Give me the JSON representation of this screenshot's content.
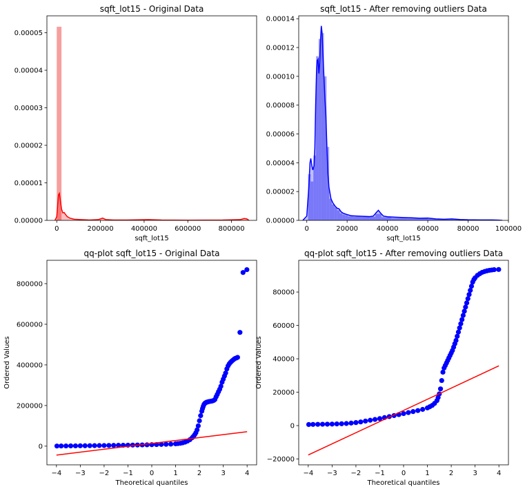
{
  "chart_data": [
    {
      "type": "histogram",
      "title": "sqft_lot15 - Original Data",
      "xlabel": "sqft_lot15",
      "ylabel": "",
      "xlim": [
        -45000,
        915000
      ],
      "ylim": [
        0,
        5.45e-05
      ],
      "xticks": [
        0,
        200000,
        400000,
        600000,
        800000
      ],
      "yticks": [
        0,
        1e-05,
        2e-05,
        3e-05,
        4e-05,
        5e-05
      ],
      "ytick_labels": [
        "0.00000",
        "0.00001",
        "0.00002",
        "0.00003",
        "0.00004",
        "0.00005"
      ],
      "color": "#ff0000",
      "bar_color": "#f59a9a",
      "bins": [
        {
          "x0": 0,
          "x1": 21750,
          "density": 5.16e-05
        }
      ],
      "kde": [
        [
          -8000,
          0
        ],
        [
          0,
          1e-06
        ],
        [
          4000,
          4e-06
        ],
        [
          8000,
          6.8e-06
        ],
        [
          12000,
          7.2e-06
        ],
        [
          16000,
          5.5e-06
        ],
        [
          22000,
          3e-06
        ],
        [
          28000,
          2e-06
        ],
        [
          34000,
          2.1e-06
        ],
        [
          40000,
          1.6e-06
        ],
        [
          48000,
          1e-06
        ],
        [
          60000,
          6e-07
        ],
        [
          80000,
          3e-07
        ],
        [
          110000,
          2e-07
        ],
        [
          150000,
          1e-07
        ],
        [
          190000,
          2e-07
        ],
        [
          210000,
          6e-07
        ],
        [
          225000,
          2e-07
        ],
        [
          260000,
          1e-07
        ],
        [
          320000,
          1e-07
        ],
        [
          420000,
          2e-07
        ],
        [
          480000,
          8e-08
        ],
        [
          600000,
          5e-08
        ],
        [
          760000,
          8e-08
        ],
        [
          840000,
          2e-07
        ],
        [
          858000,
          5e-07
        ],
        [
          870000,
          4e-07
        ],
        [
          880000,
          0.0
        ]
      ]
    },
    {
      "type": "histogram",
      "title": "sqft_lot15 - After removing outliers Data",
      "xlabel": "sqft_lot15",
      "ylabel": "",
      "xlim": [
        -4000,
        100000
      ],
      "ylim": [
        0,
        0.000142
      ],
      "xticks": [
        0,
        20000,
        40000,
        60000,
        80000,
        100000
      ],
      "yticks": [
        0,
        2e-05,
        4e-05,
        6e-05,
        8e-05,
        0.0001,
        0.00012,
        0.00014
      ],
      "ytick_labels": [
        "0.00000",
        "0.00002",
        "0.00004",
        "0.00006",
        "0.00008",
        "0.00010",
        "0.00012",
        "0.00014"
      ],
      "color": "#0000ff",
      "bar_color": "#9c9cf5",
      "bins": [
        {
          "x0": 651,
          "x1": 1959,
          "density": 3.2e-05
        },
        {
          "x0": 1959,
          "x1": 3267,
          "density": 2.7e-05
        },
        {
          "x0": 3267,
          "x1": 4575,
          "density": 4.5e-05
        },
        {
          "x0": 4575,
          "x1": 5883,
          "density": 0.000114
        },
        {
          "x0": 5883,
          "x1": 7191,
          "density": 0.000126
        },
        {
          "x0": 7191,
          "x1": 8499,
          "density": 0.00013
        },
        {
          "x0": 8499,
          "x1": 9807,
          "density": 0.0001
        },
        {
          "x0": 9807,
          "x1": 11115,
          "density": 5.1e-05
        },
        {
          "x0": 11115,
          "x1": 12423,
          "density": 1.5e-05
        },
        {
          "x0": 12423,
          "x1": 13731,
          "density": 1.1e-05
        },
        {
          "x0": 13731,
          "x1": 15039,
          "density": 9e-06
        },
        {
          "x0": 15039,
          "x1": 16347,
          "density": 7e-06
        },
        {
          "x0": 16347,
          "x1": 17655,
          "density": 5e-06
        },
        {
          "x0": 17655,
          "x1": 18963,
          "density": 4e-06
        },
        {
          "x0": 18963,
          "x1": 20271,
          "density": 3.5e-06
        },
        {
          "x0": 20271,
          "x1": 23000,
          "density": 2.8e-06
        },
        {
          "x0": 23000,
          "x1": 27000,
          "density": 2.5e-06
        },
        {
          "x0": 27000,
          "x1": 31000,
          "density": 2.4e-06
        },
        {
          "x0": 31000,
          "x1": 34000,
          "density": 2.5e-06
        },
        {
          "x0": 34000,
          "x1": 37000,
          "density": 4.5e-06
        },
        {
          "x0": 37000,
          "x1": 42000,
          "density": 2.2e-06
        },
        {
          "x0": 42000,
          "x1": 50000,
          "density": 1.6e-06
        },
        {
          "x0": 50000,
          "x1": 60000,
          "density": 1.4e-06
        },
        {
          "x0": 60000,
          "x1": 70000,
          "density": 1e-06
        },
        {
          "x0": 70000,
          "x1": 80000,
          "density": 6e-07
        },
        {
          "x0": 80000,
          "x1": 95000,
          "density": 3e-07
        }
      ],
      "kde": [
        [
          -2000,
          0
        ],
        [
          0,
          3e-06
        ],
        [
          1000,
          2.3e-05
        ],
        [
          1600,
          4e-05
        ],
        [
          2000,
          4.3e-05
        ],
        [
          2500,
          3.8e-05
        ],
        [
          3000,
          3.5e-05
        ],
        [
          3600,
          3.8e-05
        ],
        [
          4000,
          5e-05
        ],
        [
          4400,
          8e-05
        ],
        [
          4800,
          0.000102
        ],
        [
          5200,
          0.000111
        ],
        [
          5600,
          0.000112
        ],
        [
          6000,
          0.000102
        ],
        [
          6400,
          0.000109
        ],
        [
          6800,
          0.000125
        ],
        [
          7200,
          0.000135
        ],
        [
          7600,
          0.00013
        ],
        [
          8000,
          0.000116
        ],
        [
          8500,
          0.0001
        ],
        [
          9000,
          8.4e-05
        ],
        [
          9500,
          7.2e-05
        ],
        [
          10000,
          5e-05
        ],
        [
          10500,
          3.2e-05
        ],
        [
          11000,
          2.3e-05
        ],
        [
          12000,
          1.5e-05
        ],
        [
          13000,
          1.2e-05
        ],
        [
          14000,
          1e-05
        ],
        [
          15000,
          8.5e-06
        ],
        [
          16000,
          8e-06
        ],
        [
          17000,
          6e-06
        ],
        [
          18000,
          5e-06
        ],
        [
          20000,
          4e-06
        ],
        [
          22000,
          3.2e-06
        ],
        [
          25000,
          3e-06
        ],
        [
          28000,
          2.8e-06
        ],
        [
          31000,
          2.6e-06
        ],
        [
          33000,
          3e-06
        ],
        [
          34500,
          5.5e-06
        ],
        [
          35500,
          7e-06
        ],
        [
          36500,
          5.2e-06
        ],
        [
          38000,
          3e-06
        ],
        [
          40000,
          2.5e-06
        ],
        [
          44000,
          2.2e-06
        ],
        [
          48000,
          2e-06
        ],
        [
          52000,
          1.8e-06
        ],
        [
          56000,
          1.5e-06
        ],
        [
          60000,
          1.6e-06
        ],
        [
          64000,
          1e-06
        ],
        [
          68000,
          8e-07
        ],
        [
          72000,
          1e-06
        ],
        [
          76000,
          6e-07
        ],
        [
          80000,
          4e-07
        ],
        [
          86000,
          3e-07
        ],
        [
          92000,
          3e-07
        ],
        [
          95000,
          2e-07
        ],
        [
          97000,
          0.0
        ]
      ]
    },
    {
      "type": "scatter",
      "title": "qq-plot sqft_lot15 - Original Data",
      "xlabel": "Theoretical quantiles",
      "ylabel": "Ordered Values",
      "xlim": [
        -4.4,
        4.4
      ],
      "ylim": [
        -92000,
        915000
      ],
      "xticks": [
        -4,
        -3,
        -2,
        -1,
        0,
        1,
        2,
        3,
        4
      ],
      "yticks": [
        0,
        200000,
        400000,
        600000,
        800000
      ],
      "points_color": "#0000ff",
      "line_color": "#ff0000",
      "fit_line": [
        [
          -4,
          -44000
        ],
        [
          4,
          71000
        ]
      ],
      "series": [
        {
          "x": [
            -3.98,
            -3.8,
            -3.6,
            -3.4,
            -3.2,
            -3.0,
            -2.8,
            -2.6,
            -2.4,
            -2.2,
            -2.0,
            -1.8,
            -1.6,
            -1.4,
            -1.2,
            -1.0,
            -0.8,
            -0.6,
            -0.4,
            -0.2,
            0.0,
            0.2,
            0.4,
            0.6,
            0.8,
            1.0,
            1.1,
            1.2,
            1.3,
            1.4,
            1.5,
            1.6,
            1.7,
            1.75,
            1.8,
            1.85,
            1.9,
            1.95,
            2.0,
            2.05,
            2.1,
            2.13,
            2.16,
            2.19,
            2.22,
            2.25,
            2.28,
            2.31,
            2.34,
            2.37,
            2.4,
            2.45,
            2.5,
            2.55,
            2.6,
            2.65,
            2.7,
            2.75,
            2.8,
            2.85,
            2.9,
            2.95,
            3.0,
            3.05,
            3.1,
            3.15,
            3.2,
            3.25,
            3.3,
            3.35,
            3.4,
            3.45,
            3.5,
            3.55,
            3.6,
            3.7,
            3.83,
            3.99
          ],
          "y": [
            650,
            850,
            1100,
            1300,
            1500,
            1800,
            2000,
            2300,
            2600,
            2900,
            3200,
            3500,
            3800,
            4100,
            4400,
            4800,
            5200,
            5600,
            6100,
            6600,
            7200,
            7800,
            8400,
            9200,
            10000,
            11500,
            12700,
            14200,
            16500,
            20000,
            25000,
            32000,
            42000,
            48000,
            56000,
            66000,
            80000,
            100000,
            125000,
            150000,
            172000,
            185000,
            196000,
            205000,
            210000,
            213000,
            215000,
            216500,
            217500,
            218500,
            219500,
            220500,
            221500,
            223000,
            225000,
            230000,
            243000,
            255000,
            268000,
            280000,
            295000,
            315000,
            330000,
            345000,
            360000,
            380000,
            395000,
            405000,
            412000,
            418000,
            423000,
            428000,
            432000,
            434000,
            437000,
            560000,
            855000,
            869000
          ]
        }
      ]
    },
    {
      "type": "scatter",
      "title": "qq-plot sqft_lot15 - After removing outliers Data",
      "xlabel": "Theoretical quantiles",
      "ylabel": "Ordered Values",
      "xlim": [
        -4.4,
        4.4
      ],
      "ylim": [
        -23500,
        99000
      ],
      "xticks": [
        -4,
        -3,
        -2,
        -1,
        0,
        1,
        2,
        3,
        4
      ],
      "yticks": [
        -20000,
        0,
        20000,
        40000,
        60000,
        80000
      ],
      "points_color": "#0000ff",
      "line_color": "#ff0000",
      "fit_line": [
        [
          -4,
          -17600
        ],
        [
          4,
          35800
        ]
      ],
      "series": [
        {
          "x": [
            -3.98,
            -3.8,
            -3.6,
            -3.4,
            -3.2,
            -3.0,
            -2.8,
            -2.6,
            -2.4,
            -2.2,
            -2.0,
            -1.8,
            -1.6,
            -1.4,
            -1.2,
            -1.0,
            -0.8,
            -0.6,
            -0.4,
            -0.2,
            0.0,
            0.2,
            0.4,
            0.6,
            0.8,
            1.0,
            1.1,
            1.2,
            1.3,
            1.4,
            1.45,
            1.5,
            1.55,
            1.6,
            1.65,
            1.7,
            1.75,
            1.8,
            1.85,
            1.9,
            1.95,
            2.0,
            2.05,
            2.1,
            2.15,
            2.2,
            2.25,
            2.3,
            2.35,
            2.4,
            2.45,
            2.5,
            2.55,
            2.6,
            2.65,
            2.7,
            2.75,
            2.8,
            2.85,
            2.9,
            2.95,
            3.0,
            3.1,
            3.2,
            3.3,
            3.4,
            3.5,
            3.6,
            3.7,
            3.8,
            3.99
          ],
          "y": [
            650,
            700,
            750,
            800,
            850,
            900,
            1000,
            1100,
            1250,
            1500,
            1800,
            2200,
            2700,
            3200,
            3700,
            4200,
            4800,
            5400,
            6000,
            6600,
            7200,
            7800,
            8400,
            9000,
            9700,
            10600,
            11300,
            12100,
            13300,
            15000,
            16800,
            19000,
            22000,
            27000,
            32000,
            34500,
            36000,
            37500,
            39000,
            40500,
            42000,
            43500,
            45000,
            47000,
            49000,
            51000,
            53500,
            56000,
            58500,
            61000,
            63500,
            66000,
            68500,
            71000,
            73500,
            76000,
            78500,
            81000,
            83500,
            86000,
            87500,
            88500,
            90000,
            91000,
            91800,
            92300,
            92700,
            93000,
            93200,
            93400,
            93500
          ]
        }
      ]
    }
  ]
}
